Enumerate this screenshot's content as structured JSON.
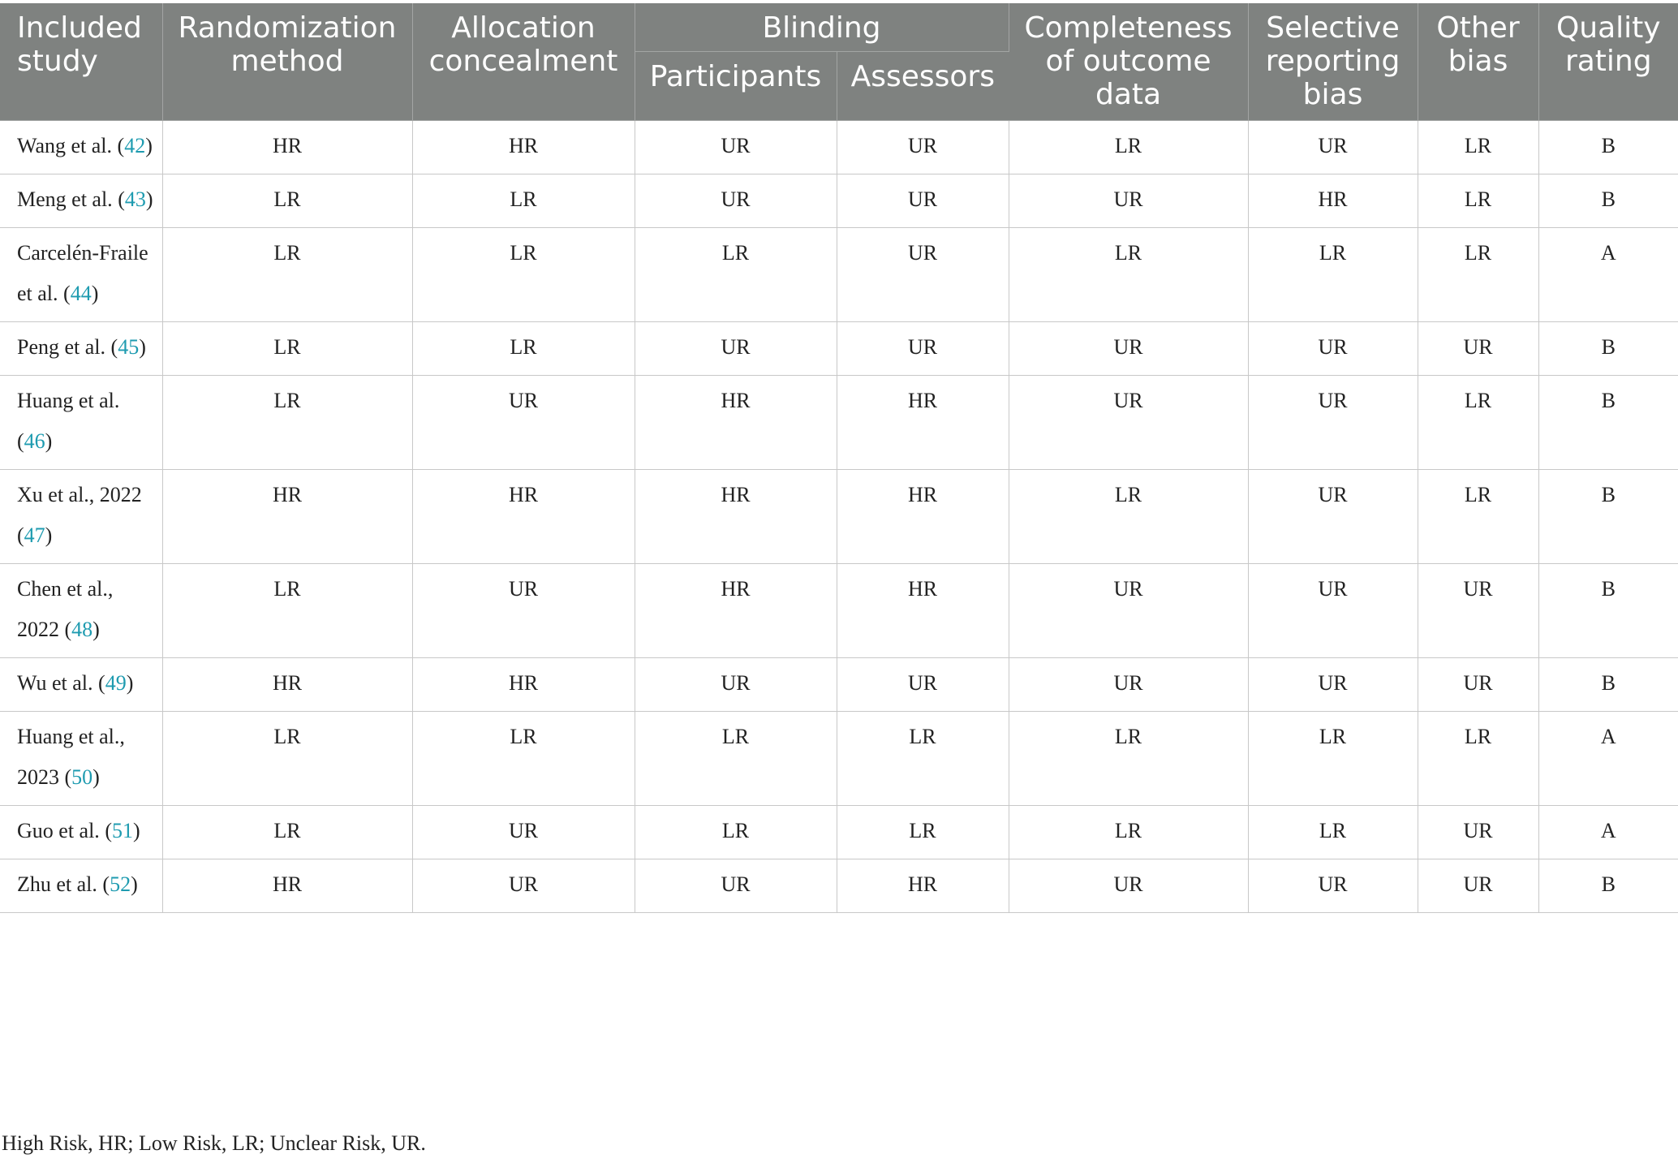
{
  "table": {
    "headers": {
      "study": "Included study",
      "randomization": "Randomization method",
      "allocation": "Allocation concealment",
      "blinding": "Blinding",
      "participants": "Participants",
      "assessors": "Assessors",
      "completeness": "Completeness of outcome data",
      "selective": "Selective reporting bias",
      "other": "Other bias",
      "quality": "Quality rating"
    },
    "rows": [
      {
        "study": "Wang et al.",
        "ref": "42",
        "values": [
          "HR",
          "HR",
          "UR",
          "UR",
          "LR",
          "UR",
          "LR",
          "B"
        ]
      },
      {
        "study": "Meng et al.",
        "ref": "43",
        "values": [
          "LR",
          "LR",
          "UR",
          "UR",
          "UR",
          "HR",
          "LR",
          "B"
        ]
      },
      {
        "study": "Carcelén-Fraile et al.",
        "ref": "44",
        "values": [
          "LR",
          "LR",
          "LR",
          "UR",
          "LR",
          "LR",
          "LR",
          "A"
        ]
      },
      {
        "study": "Peng et al.",
        "ref": "45",
        "values": [
          "LR",
          "LR",
          "UR",
          "UR",
          "UR",
          "UR",
          "UR",
          "B"
        ]
      },
      {
        "study": "Huang et al.",
        "ref": "46",
        "values": [
          "LR",
          "UR",
          "HR",
          "HR",
          "UR",
          "UR",
          "LR",
          "B"
        ]
      },
      {
        "study": "Xu et al., 2022",
        "ref": "47",
        "values": [
          "HR",
          "HR",
          "HR",
          "HR",
          "LR",
          "UR",
          "LR",
          "B"
        ]
      },
      {
        "study": "Chen et al., 2022",
        "ref": "48",
        "values": [
          "LR",
          "UR",
          "HR",
          "HR",
          "UR",
          "UR",
          "UR",
          "B"
        ]
      },
      {
        "study": "Wu et al.",
        "ref": "49",
        "values": [
          "HR",
          "HR",
          "UR",
          "UR",
          "UR",
          "UR",
          "UR",
          "B"
        ]
      },
      {
        "study": "Huang et al., 2023",
        "ref": "50",
        "values": [
          "LR",
          "LR",
          "LR",
          "LR",
          "LR",
          "LR",
          "LR",
          "A"
        ]
      },
      {
        "study": "Guo et al.",
        "ref": "51",
        "values": [
          "LR",
          "UR",
          "LR",
          "LR",
          "LR",
          "LR",
          "UR",
          "A"
        ]
      },
      {
        "study": "Zhu et al.",
        "ref": "52",
        "values": [
          "HR",
          "UR",
          "UR",
          "HR",
          "UR",
          "UR",
          "UR",
          "B"
        ]
      }
    ]
  },
  "footnote": "High Risk, HR; Low Risk, LR; Unclear Risk, UR.",
  "colors": {
    "header_bg": "#7f8280",
    "header_text": "#ffffff",
    "ref_link": "#1e9bb0",
    "grid": "#c8c8c8"
  }
}
